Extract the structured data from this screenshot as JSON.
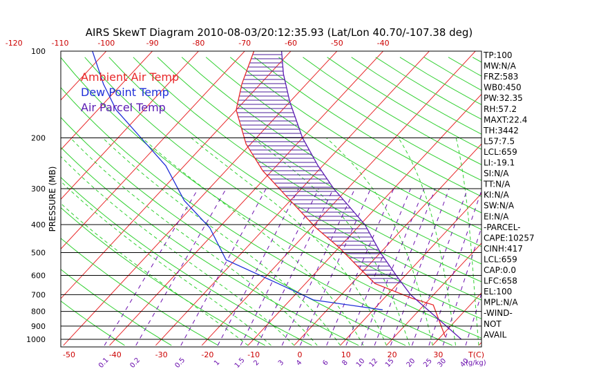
{
  "chart_data": {
    "type": "line",
    "title": "AIRS SkewT Diagram 2010-08-03/20:12:35.93 (Lat/Lon 40.70/-107.38 deg)",
    "ylabel": "PRESSURE (MB)",
    "y_scale": "log",
    "y_reversed": true,
    "ylim": [
      1000,
      100
    ],
    "y_ticks": [
      "100",
      "200",
      "300",
      "400",
      "500",
      "600",
      "700",
      "800",
      "900",
      "1000"
    ],
    "top_ticks": [
      "-120",
      "-110",
      "-100",
      "-90",
      "-80",
      "-70",
      "-60",
      "-50",
      "-40"
    ],
    "bottom_ticks": [
      "-50",
      "-40",
      "-30",
      "-20",
      "-10",
      "0",
      "10",
      "20",
      "30"
    ],
    "bottom_unit": "T(C)",
    "mixing_ratio_ticks": [
      "0.1",
      "0.2",
      "0.5",
      "1",
      "1.5",
      "2",
      "3",
      "4",
      "6",
      "8",
      "10",
      "12",
      "15",
      "20",
      "25",
      "30",
      "40"
    ],
    "mixing_ratio_unit": "(g/kg)",
    "legend": {
      "placement": "top-left",
      "entries": [
        {
          "label": "Ambient Air Temp",
          "color": "#e8282a"
        },
        {
          "label": "Dew Point Temp",
          "color": "#1f2fd8"
        },
        {
          "label": "Air Parcel Temp",
          "color": "#5a1ab2"
        }
      ]
    },
    "series": [
      {
        "name": "Ambient Air Temp",
        "color": "#e8282a",
        "points": [
          {
            "p": 980,
            "t": 31
          },
          {
            "p": 760,
            "t": 22
          },
          {
            "p": 720,
            "t": 16
          },
          {
            "p": 640,
            "t": 5
          },
          {
            "p": 560,
            "t": -2
          },
          {
            "p": 480,
            "t": -10
          },
          {
            "p": 410,
            "t": -19
          },
          {
            "p": 330,
            "t": -30
          },
          {
            "p": 260,
            "t": -42
          },
          {
            "p": 210,
            "t": -51
          },
          {
            "p": 160,
            "t": -60
          },
          {
            "p": 130,
            "t": -64
          },
          {
            "p": 100,
            "t": -68
          }
        ]
      },
      {
        "name": "Dew Point Temp",
        "color": "#1f2fd8",
        "points": [
          {
            "p": 790,
            "t": 12
          },
          {
            "p": 730,
            "t": -5
          },
          {
            "p": 640,
            "t": -16
          },
          {
            "p": 530,
            "t": -32
          },
          {
            "p": 410,
            "t": -42
          },
          {
            "p": 330,
            "t": -53
          },
          {
            "p": 250,
            "t": -64
          },
          {
            "p": 200,
            "t": -75
          },
          {
            "p": 160,
            "t": -86
          },
          {
            "p": 130,
            "t": -94
          },
          {
            "p": 100,
            "t": -103
          }
        ]
      },
      {
        "name": "Air Parcel Temp",
        "color": "#5a1ab2",
        "points": [
          {
            "p": 1000,
            "t": 35
          },
          {
            "p": 700,
            "t": 15
          },
          {
            "p": 600,
            "t": 8
          },
          {
            "p": 500,
            "t": 0
          },
          {
            "p": 400,
            "t": -9
          },
          {
            "p": 300,
            "t": -23
          },
          {
            "p": 250,
            "t": -31
          },
          {
            "p": 200,
            "t": -40
          },
          {
            "p": 150,
            "t": -50
          },
          {
            "p": 120,
            "t": -57
          },
          {
            "p": 100,
            "t": -62
          }
        ]
      }
    ],
    "hatch_color": "#4a1a9a"
  },
  "side_panel": {
    "lines": [
      "TP:100",
      "MW:N/A",
      "FRZ:583",
      "WB0:450",
      "PW:32.35",
      "RH:57.2",
      "MAXT:22.4",
      "TH:3442",
      "L57:7.5",
      "LCL:659",
      "LI:-19.1",
      "SI:N/A",
      "TT:N/A",
      "KI:N/A",
      "SW:N/A",
      "EI:N/A",
      "-PARCEL-",
      "CAPE:10257",
      "CINH:417",
      "LCL:659",
      "CAP:0.0",
      "LFC:658",
      "EL:100",
      "MPL:N/A",
      "-WIND-",
      "NOT",
      "AVAIL"
    ]
  }
}
